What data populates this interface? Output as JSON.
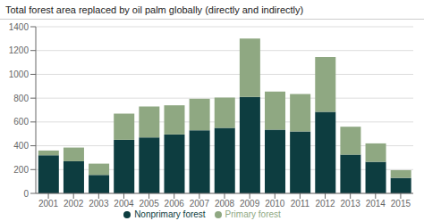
{
  "chart_data": {
    "type": "bar",
    "title": "Total forest area replaced by oil palm globally (directly and indirectly)",
    "categories": [
      "2001",
      "2002",
      "2003",
      "2004",
      "2005",
      "2006",
      "2007",
      "2008",
      "2009",
      "2010",
      "2011",
      "2012",
      "2013",
      "2014",
      "2015"
    ],
    "series": [
      {
        "name": "Nonprimary forest",
        "color": "#0d3d40",
        "values": [
          320,
          270,
          155,
          450,
          470,
          495,
          530,
          550,
          810,
          535,
          520,
          685,
          325,
          265,
          130
        ]
      },
      {
        "name": "Primary forest",
        "color": "#8fa882",
        "values": [
          40,
          115,
          95,
          220,
          260,
          245,
          265,
          255,
          490,
          320,
          315,
          460,
          235,
          155,
          65
        ]
      }
    ],
    "ylim": [
      0,
      1400
    ],
    "yticks": [
      0,
      200,
      400,
      600,
      800,
      1000,
      1200,
      1400
    ],
    "stacked": true,
    "grid": true,
    "legend": "bottom"
  }
}
